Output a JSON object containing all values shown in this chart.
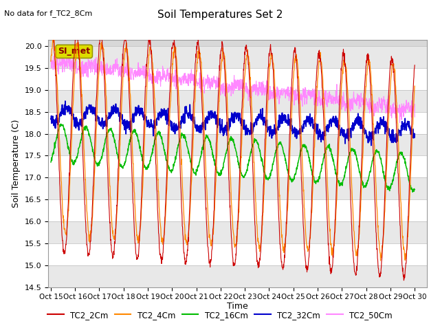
{
  "title": "Soil Temperatures Set 2",
  "no_data_note": "No data for f_TC2_8Cm",
  "ylabel": "Soil Temperature (C)",
  "xlabel": "Time",
  "ylim": [
    14.5,
    20.15
  ],
  "xtick_labels": [
    "Oct 15",
    "Oct 16",
    "Oct 17",
    "Oct 18",
    "Oct 19",
    "Oct 20",
    "Oct 21",
    "Oct 22",
    "Oct 23",
    "Oct 24",
    "Oct 25",
    "Oct 26",
    "Oct 27",
    "Oct 28",
    "Oct 29",
    "Oct 30"
  ],
  "si_met_label": "SI_met",
  "colors": {
    "TC2_2Cm": "#cc0000",
    "TC2_4Cm": "#ff8800",
    "TC2_16Cm": "#00bb00",
    "TC2_32Cm": "#0000cc",
    "TC2_50Cm": "#ff88ff"
  },
  "legend_labels": [
    "TC2_2Cm",
    "TC2_4Cm",
    "TC2_16Cm",
    "TC2_32Cm",
    "TC2_50Cm"
  ]
}
